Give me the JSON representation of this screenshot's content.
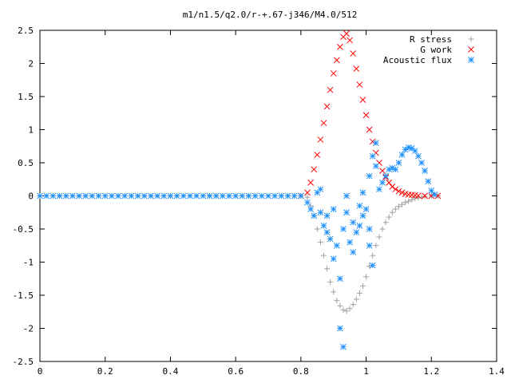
{
  "chart_data": {
    "type": "scatter",
    "title": "m1/n1.5/q2.0/r-+.67-j346/M4.0/512",
    "xlabel": "",
    "ylabel": "",
    "xlim": [
      0,
      1.4
    ],
    "ylim": [
      -2.5,
      2.5
    ],
    "xticks": [
      0,
      0.2,
      0.4,
      0.6,
      0.8,
      1,
      1.2,
      1.4
    ],
    "yticks": [
      -2.5,
      -2,
      -1.5,
      -1,
      -0.5,
      0,
      0.5,
      1,
      1.5,
      2,
      2.5
    ],
    "xtick_labels": [
      "0",
      "0.2",
      "0.4",
      "0.6",
      "0.8",
      "1",
      "1.2",
      "1.4"
    ],
    "ytick_labels": [
      "-2.5",
      "-2",
      "-1.5",
      "-1",
      "-0.5",
      "0",
      "0.5",
      "1",
      "1.5",
      "2",
      "2.5"
    ],
    "grid": false,
    "legend_position": "top-right",
    "series": [
      {
        "name": "R stress",
        "marker": "plus",
        "color": "#a0a0a0",
        "points": [
          [
            0.8,
            0.0
          ],
          [
            0.82,
            -0.02
          ],
          [
            0.83,
            -0.15
          ],
          [
            0.84,
            -0.3
          ],
          [
            0.85,
            -0.5
          ],
          [
            0.86,
            -0.7
          ],
          [
            0.87,
            -0.9
          ],
          [
            0.88,
            -1.1
          ],
          [
            0.89,
            -1.3
          ],
          [
            0.9,
            -1.45
          ],
          [
            0.91,
            -1.58
          ],
          [
            0.92,
            -1.66
          ],
          [
            0.93,
            -1.72
          ],
          [
            0.94,
            -1.74
          ],
          [
            0.95,
            -1.7
          ],
          [
            0.96,
            -1.64
          ],
          [
            0.97,
            -1.56
          ],
          [
            0.98,
            -1.47
          ],
          [
            0.99,
            -1.36
          ],
          [
            1.0,
            -1.22
          ],
          [
            1.01,
            -1.06
          ],
          [
            1.02,
            -0.9
          ],
          [
            1.03,
            -0.75
          ],
          [
            1.04,
            -0.62
          ],
          [
            1.05,
            -0.5
          ],
          [
            1.06,
            -0.4
          ],
          [
            1.07,
            -0.32
          ],
          [
            1.08,
            -0.25
          ],
          [
            1.09,
            -0.2
          ],
          [
            1.1,
            -0.16
          ],
          [
            1.11,
            -0.13
          ],
          [
            1.12,
            -0.1
          ],
          [
            1.13,
            -0.08
          ],
          [
            1.14,
            -0.06
          ],
          [
            1.15,
            -0.04
          ],
          [
            1.16,
            -0.03
          ],
          [
            1.17,
            -0.02
          ],
          [
            1.18,
            -0.01
          ],
          [
            1.2,
            0.0
          ],
          [
            1.22,
            0.0
          ]
        ]
      },
      {
        "name": "G work",
        "marker": "cross",
        "color": "#ff0000",
        "points": [
          [
            0.8,
            0.0
          ],
          [
            0.82,
            0.05
          ],
          [
            0.83,
            0.2
          ],
          [
            0.84,
            0.4
          ],
          [
            0.85,
            0.62
          ],
          [
            0.86,
            0.85
          ],
          [
            0.87,
            1.1
          ],
          [
            0.88,
            1.35
          ],
          [
            0.89,
            1.6
          ],
          [
            0.9,
            1.85
          ],
          [
            0.91,
            2.05
          ],
          [
            0.92,
            2.25
          ],
          [
            0.93,
            2.4
          ],
          [
            0.94,
            2.45
          ],
          [
            0.95,
            2.35
          ],
          [
            0.96,
            2.15
          ],
          [
            0.97,
            1.92
          ],
          [
            0.98,
            1.68
          ],
          [
            0.99,
            1.45
          ],
          [
            1.0,
            1.22
          ],
          [
            1.01,
            1.0
          ],
          [
            1.02,
            0.82
          ],
          [
            1.03,
            0.65
          ],
          [
            1.04,
            0.5
          ],
          [
            1.05,
            0.38
          ],
          [
            1.06,
            0.28
          ],
          [
            1.07,
            0.2
          ],
          [
            1.08,
            0.14
          ],
          [
            1.09,
            0.1
          ],
          [
            1.1,
            0.07
          ],
          [
            1.11,
            0.05
          ],
          [
            1.12,
            0.03
          ],
          [
            1.13,
            0.02
          ],
          [
            1.14,
            0.015
          ],
          [
            1.15,
            0.01
          ],
          [
            1.16,
            0.005
          ],
          [
            1.18,
            0.0
          ],
          [
            1.2,
            0.0
          ],
          [
            1.22,
            0.0
          ]
        ]
      },
      {
        "name": "Acoustic flux",
        "marker": "star",
        "color": "#1e90ff",
        "points": [
          [
            0.0,
            0.0
          ],
          [
            0.02,
            0.0
          ],
          [
            0.04,
            0.0
          ],
          [
            0.06,
            0.0
          ],
          [
            0.08,
            0.0
          ],
          [
            0.1,
            0.0
          ],
          [
            0.12,
            0.0
          ],
          [
            0.14,
            0.0
          ],
          [
            0.16,
            0.0
          ],
          [
            0.18,
            0.0
          ],
          [
            0.2,
            0.0
          ],
          [
            0.22,
            0.0
          ],
          [
            0.24,
            0.0
          ],
          [
            0.26,
            0.0
          ],
          [
            0.28,
            0.0
          ],
          [
            0.3,
            0.0
          ],
          [
            0.32,
            0.0
          ],
          [
            0.34,
            0.0
          ],
          [
            0.36,
            0.0
          ],
          [
            0.38,
            0.0
          ],
          [
            0.4,
            0.0
          ],
          [
            0.42,
            0.0
          ],
          [
            0.44,
            0.0
          ],
          [
            0.46,
            0.0
          ],
          [
            0.48,
            0.0
          ],
          [
            0.5,
            0.0
          ],
          [
            0.52,
            0.0
          ],
          [
            0.54,
            0.0
          ],
          [
            0.56,
            0.0
          ],
          [
            0.58,
            0.0
          ],
          [
            0.6,
            0.0
          ],
          [
            0.62,
            0.0
          ],
          [
            0.64,
            0.0
          ],
          [
            0.66,
            0.0
          ],
          [
            0.68,
            0.0
          ],
          [
            0.7,
            0.0
          ],
          [
            0.72,
            0.0
          ],
          [
            0.74,
            0.0
          ],
          [
            0.76,
            0.0
          ],
          [
            0.78,
            0.0
          ],
          [
            0.8,
            0.0
          ],
          [
            0.82,
            -0.1
          ],
          [
            0.83,
            -0.2
          ],
          [
            0.84,
            -0.3
          ],
          [
            0.85,
            0.05
          ],
          [
            0.86,
            0.1
          ],
          [
            0.86,
            -0.25
          ],
          [
            0.87,
            -0.45
          ],
          [
            0.88,
            -0.55
          ],
          [
            0.88,
            -0.3
          ],
          [
            0.89,
            -0.65
          ],
          [
            0.9,
            -0.95
          ],
          [
            0.9,
            -0.2
          ],
          [
            0.91,
            -0.75
          ],
          [
            0.92,
            -1.25
          ],
          [
            0.92,
            -2.0
          ],
          [
            0.93,
            -2.28
          ],
          [
            0.93,
            -0.5
          ],
          [
            0.94,
            -0.25
          ],
          [
            0.94,
            0.0
          ],
          [
            0.95,
            -0.7
          ],
          [
            0.96,
            -0.85
          ],
          [
            0.96,
            -0.4
          ],
          [
            0.97,
            -0.55
          ],
          [
            0.98,
            -0.45
          ],
          [
            0.98,
            -0.15
          ],
          [
            0.99,
            -0.3
          ],
          [
            0.99,
            0.05
          ],
          [
            1.0,
            -0.2
          ],
          [
            1.01,
            -0.75
          ],
          [
            1.01,
            -0.5
          ],
          [
            1.01,
            0.3
          ],
          [
            1.02,
            -1.05
          ],
          [
            1.02,
            0.6
          ],
          [
            1.03,
            0.8
          ],
          [
            1.03,
            0.45
          ],
          [
            1.04,
            0.1
          ],
          [
            1.05,
            0.2
          ],
          [
            1.06,
            0.3
          ],
          [
            1.07,
            0.4
          ],
          [
            1.08,
            0.42
          ],
          [
            1.09,
            0.4
          ],
          [
            1.1,
            0.5
          ],
          [
            1.11,
            0.62
          ],
          [
            1.12,
            0.7
          ],
          [
            1.13,
            0.73
          ],
          [
            1.14,
            0.72
          ],
          [
            1.15,
            0.68
          ],
          [
            1.16,
            0.6
          ],
          [
            1.17,
            0.5
          ],
          [
            1.18,
            0.38
          ],
          [
            1.19,
            0.22
          ],
          [
            1.2,
            0.08
          ],
          [
            1.21,
            0.02
          ]
        ]
      }
    ]
  }
}
